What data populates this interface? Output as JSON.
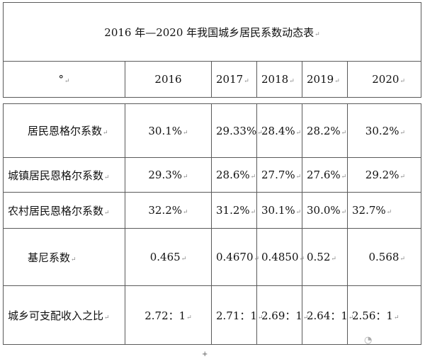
{
  "table": {
    "title": "2016 年—2020 年我国城乡居民系数动态表",
    "header": {
      "corner": "°",
      "years": [
        "2016",
        "2017",
        "2018",
        "2019",
        "2020"
      ]
    },
    "rows": [
      {
        "label": "居民恩格尔系数",
        "values": [
          "30.1%",
          "29.33%",
          "28.4%",
          "28.2%",
          "30.2%"
        ]
      },
      {
        "label": "城镇居民恩格尔系数",
        "values": [
          "29.3%",
          "28.6%",
          "27.7%",
          "27.6%",
          "29.2%"
        ]
      },
      {
        "label": "农村居民恩格尔系数",
        "values": [
          "32.2%",
          "31.2%",
          "30.1%",
          "30.0%",
          "32.7%"
        ]
      },
      {
        "label": "基尼系数",
        "values": [
          "0.465",
          "0.4670",
          "0.4850",
          "0.52",
          "0.568"
        ]
      },
      {
        "label": "城乡可支配收入之比",
        "values": [
          "2.72：1",
          "2.71：1",
          "2.69：1",
          "2.64：1",
          "2.56：1"
        ]
      }
    ]
  },
  "marks": {
    "paragraph_mark": "↵",
    "plus": "+",
    "wechat_icon": "wechat-icon"
  }
}
